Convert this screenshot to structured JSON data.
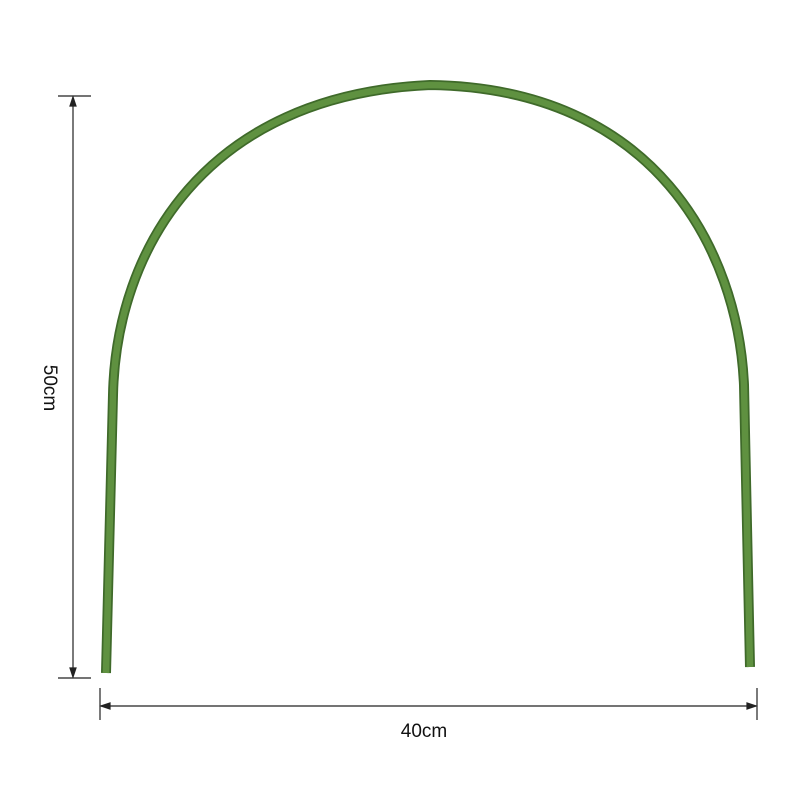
{
  "dimensions": {
    "height_label": "50cm",
    "width_label": "40cm"
  },
  "colors": {
    "hoop": "#5f9140",
    "hoop_edge": "#3f6a2a",
    "dimension_line": "#222222"
  }
}
